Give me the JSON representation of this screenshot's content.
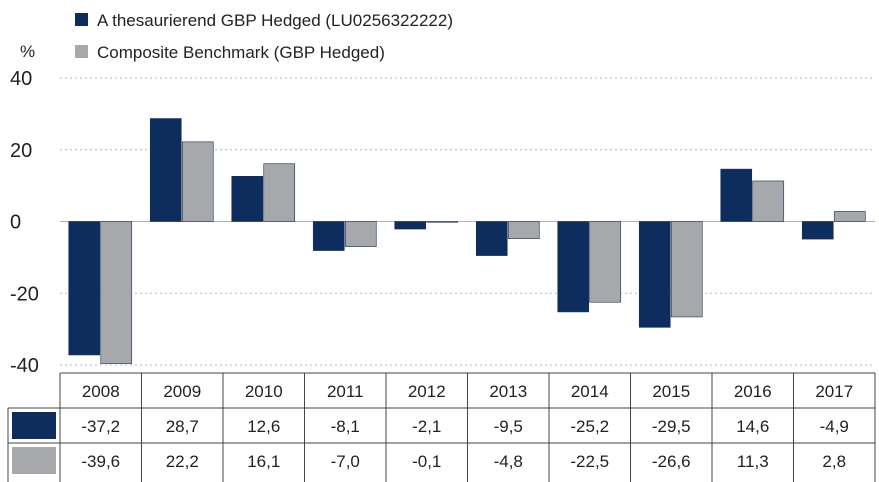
{
  "legend": [
    {
      "label": "A thesaurierend GBP Hedged (LU0256322222)",
      "color": "#0e2d5f"
    },
    {
      "label": "Composite Benchmark (GBP Hedged)",
      "color": "#a6a8ab"
    }
  ],
  "chart_data": {
    "type": "bar",
    "categories": [
      "2008",
      "2009",
      "2010",
      "2011",
      "2012",
      "2013",
      "2014",
      "2015",
      "2016",
      "2017"
    ],
    "series": [
      {
        "name": "A thesaurierend GBP Hedged (LU0256322222)",
        "values": [
          -37.2,
          28.7,
          12.6,
          -8.1,
          -2.1,
          -9.5,
          -25.2,
          -29.5,
          14.6,
          -4.9
        ],
        "labels": [
          "-37,2",
          "28,7",
          "12,6",
          "-8,1",
          "-2,1",
          "-9,5",
          "-25,2",
          "-29,5",
          "14,6",
          "-4,9"
        ],
        "color": "#0e2d5f"
      },
      {
        "name": "Composite Benchmark (GBP Hedged)",
        "values": [
          -39.6,
          22.2,
          16.1,
          -7.0,
          -0.1,
          -4.8,
          -22.5,
          -26.6,
          11.3,
          2.8
        ],
        "labels": [
          "-39,6",
          "22,2",
          "16,1",
          "-7,0",
          "-0,1",
          "-4,8",
          "-22,5",
          "-26,6",
          "11,3",
          "2,8"
        ],
        "color": "#a6a8ab"
      }
    ],
    "ylabel": "%",
    "ylim": [
      -40,
      40
    ],
    "yticks": [
      40,
      20,
      0,
      -20,
      -40
    ],
    "grid": true,
    "legend_position": "top-left",
    "data_table": true
  }
}
